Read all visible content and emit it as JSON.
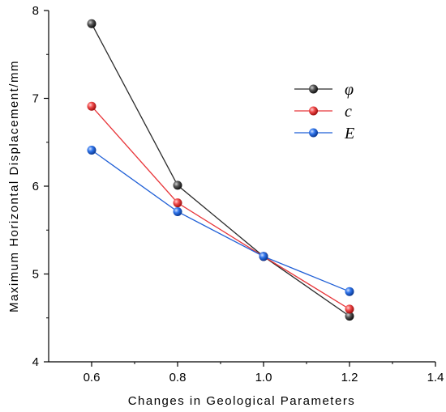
{
  "chart_data": {
    "type": "line",
    "xlabel": "Changes in Geological Parameters",
    "ylabel": "Maximum Horizontal Displacement/mm",
    "xlim": [
      0.5,
      1.4
    ],
    "ylim": [
      4,
      8
    ],
    "xticks": [
      "0.6",
      "0.8",
      "1.0",
      "1.2",
      "1.4"
    ],
    "yticks": [
      "4",
      "5",
      "6",
      "7",
      "8"
    ],
    "x": [
      0.6,
      0.8,
      1.0,
      1.2
    ],
    "grid": false,
    "legend_position": "top-right",
    "series": [
      {
        "name": "φ",
        "color": "#2b2b2b",
        "values": [
          7.85,
          6.01,
          5.2,
          4.52
        ]
      },
      {
        "name": "c",
        "color": "#e8363a",
        "values": [
          6.91,
          5.81,
          5.2,
          4.6
        ]
      },
      {
        "name": "E",
        "color": "#1f5fd6",
        "values": [
          6.41,
          5.71,
          5.2,
          4.8
        ]
      }
    ]
  }
}
